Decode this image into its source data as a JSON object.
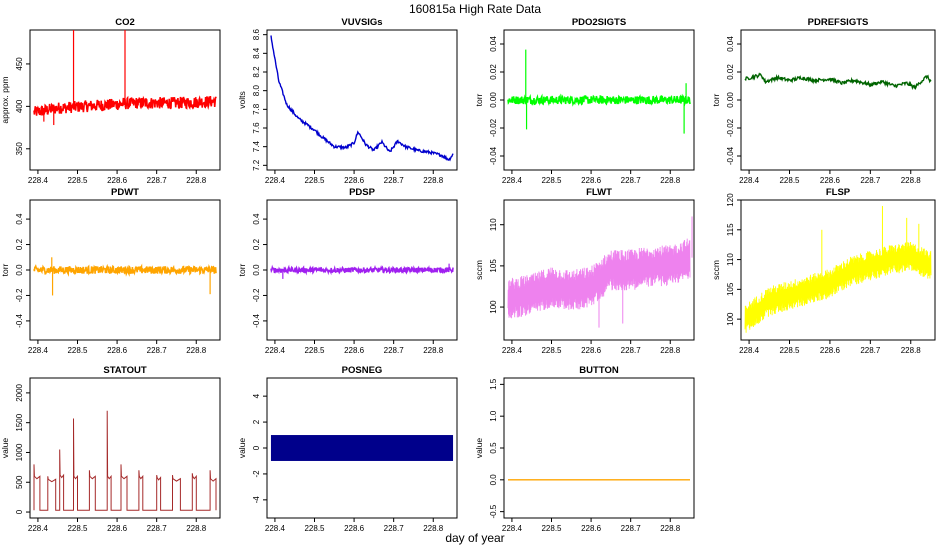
{
  "page": {
    "title": "160815a   High Rate Data",
    "xlabel": "day of year"
  },
  "chart_data": [
    {
      "type": "line",
      "title": "CO2",
      "ylabel": "approx. ppm",
      "color": "#ff0000",
      "xlim": [
        228.38,
        228.86
      ],
      "ylim": [
        325,
        490
      ],
      "xticks": [
        228.4,
        228.5,
        228.6,
        228.7,
        228.8
      ],
      "xtick_labels": [
        "228.4",
        "228.5",
        "228.6",
        "228.7",
        "228.8"
      ],
      "yticks": [
        350,
        400,
        450
      ],
      "ytick_labels": [
        "350",
        "400",
        "450"
      ],
      "series": [
        {
          "name": "CO2",
          "style": "noisy",
          "base": [
            [
              228.39,
              393
            ],
            [
              228.45,
              398
            ],
            [
              228.55,
              401
            ],
            [
              228.65,
              404
            ],
            [
              228.75,
              404
            ],
            [
              228.85,
              406
            ]
          ],
          "noise": 7,
          "spikes": [
            [
              228.49,
              490
            ],
            [
              228.62,
              490
            ],
            [
              228.44,
              378
            ],
            [
              228.415,
              382
            ]
          ]
        }
      ]
    },
    {
      "type": "line",
      "title": "VUVSIGs",
      "ylabel": "volts",
      "color": "#0000cd",
      "xlim": [
        228.38,
        228.86
      ],
      "ylim": [
        7.15,
        8.65
      ],
      "xticks": [
        228.4,
        228.5,
        228.6,
        228.7,
        228.8
      ],
      "xtick_labels": [
        "228.4",
        "228.5",
        "228.6",
        "228.7",
        "228.8"
      ],
      "yticks": [
        7.2,
        7.4,
        7.6,
        7.8,
        8.0,
        8.2,
        8.4,
        8.6
      ],
      "ytick_labels": [
        "7.2",
        "7.4",
        "7.6",
        "7.8",
        "8.0",
        "8.2",
        "8.4",
        "8.6"
      ],
      "series": [
        {
          "name": "VUVSIGs",
          "style": "smooth",
          "points": [
            [
              228.39,
              8.58
            ],
            [
              228.41,
              8.1
            ],
            [
              228.43,
              7.85
            ],
            [
              228.46,
              7.7
            ],
            [
              228.5,
              7.58
            ],
            [
              228.52,
              7.5
            ],
            [
              228.55,
              7.4
            ],
            [
              228.58,
              7.39
            ],
            [
              228.6,
              7.44
            ],
            [
              228.61,
              7.56
            ],
            [
              228.63,
              7.42
            ],
            [
              228.65,
              7.36
            ],
            [
              228.67,
              7.45
            ],
            [
              228.69,
              7.34
            ],
            [
              228.71,
              7.46
            ],
            [
              228.73,
              7.4
            ],
            [
              228.76,
              7.36
            ],
            [
              228.79,
              7.34
            ],
            [
              228.82,
              7.31
            ],
            [
              228.84,
              7.26
            ],
            [
              228.85,
              7.32
            ]
          ],
          "noise": 0.015
        }
      ]
    },
    {
      "type": "line",
      "title": "PDO2SIGTS",
      "ylabel": "torr",
      "color": "#00ff00",
      "xlim": [
        228.38,
        228.86
      ],
      "ylim": [
        -0.05,
        0.05
      ],
      "xticks": [
        228.4,
        228.5,
        228.6,
        228.7,
        228.8
      ],
      "xtick_labels": [
        "228.4",
        "228.5",
        "228.6",
        "228.7",
        "228.8"
      ],
      "yticks": [
        -0.04,
        -0.02,
        0.0,
        0.02,
        0.04
      ],
      "ytick_labels": [
        "-0.04",
        "-0.02",
        "0.00",
        "0.02",
        "0.04"
      ],
      "series": [
        {
          "name": "PDO2SIGTS",
          "style": "noisy",
          "base": [
            [
              228.39,
              0.0
            ],
            [
              228.85,
              0.0
            ]
          ],
          "noise": 0.003,
          "spikes": [
            [
              228.435,
              0.036
            ],
            [
              228.437,
              -0.021
            ],
            [
              228.835,
              -0.024
            ],
            [
              228.84,
              0.012
            ]
          ]
        }
      ]
    },
    {
      "type": "line",
      "title": "PDREFSIGTS",
      "ylabel": "torr",
      "color": "#006400",
      "xlim": [
        228.38,
        228.86
      ],
      "ylim": [
        -0.05,
        0.05
      ],
      "xticks": [
        228.4,
        228.5,
        228.6,
        228.7,
        228.8
      ],
      "xtick_labels": [
        "228.4",
        "228.5",
        "228.6",
        "228.7",
        "228.8"
      ],
      "yticks": [
        -0.04,
        -0.02,
        0.0,
        0.02,
        0.04
      ],
      "ytick_labels": [
        "-0.04",
        "-0.02",
        "0.00",
        "0.02",
        "0.04"
      ],
      "series": [
        {
          "name": "PDREFSIGTS",
          "style": "smooth",
          "points": [
            [
              228.39,
              0.015
            ],
            [
              228.43,
              0.018
            ],
            [
              228.44,
              0.013
            ],
            [
              228.47,
              0.016
            ],
            [
              228.5,
              0.014
            ],
            [
              228.53,
              0.016
            ],
            [
              228.56,
              0.014
            ],
            [
              228.6,
              0.015
            ],
            [
              228.63,
              0.012
            ],
            [
              228.66,
              0.014
            ],
            [
              228.7,
              0.011
            ],
            [
              228.73,
              0.013
            ],
            [
              228.76,
              0.01
            ],
            [
              228.79,
              0.012
            ],
            [
              228.81,
              0.009
            ],
            [
              228.84,
              0.017
            ],
            [
              228.85,
              0.013
            ]
          ],
          "noise": 0.0012
        }
      ]
    },
    {
      "type": "line",
      "title": "PDWT",
      "ylabel": "torr",
      "color": "#ffa500",
      "xlim": [
        228.38,
        228.86
      ],
      "ylim": [
        -0.55,
        0.55
      ],
      "xticks": [
        228.4,
        228.5,
        228.6,
        228.7,
        228.8
      ],
      "xtick_labels": [
        "228.4",
        "228.5",
        "228.6",
        "228.7",
        "228.8"
      ],
      "yticks": [
        -0.4,
        -0.2,
        0.0,
        0.2,
        0.4
      ],
      "ytick_labels": [
        "-0.4",
        "-0.2",
        "0.0",
        "0.2",
        "0.4"
      ],
      "series": [
        {
          "name": "PDWT",
          "style": "noisy",
          "base": [
            [
              228.39,
              0.0
            ],
            [
              228.85,
              0.0
            ]
          ],
          "noise": 0.03,
          "spikes": [
            [
              228.435,
              0.1
            ],
            [
              228.437,
              -0.2
            ],
            [
              228.835,
              -0.19
            ]
          ]
        }
      ]
    },
    {
      "type": "line",
      "title": "PDSP",
      "ylabel": "torr",
      "color": "#a020f0",
      "xlim": [
        228.38,
        228.86
      ],
      "ylim": [
        -0.55,
        0.55
      ],
      "xticks": [
        228.4,
        228.5,
        228.6,
        228.7,
        228.8
      ],
      "xtick_labels": [
        "228.4",
        "228.5",
        "228.6",
        "228.7",
        "228.8"
      ],
      "yticks": [
        -0.4,
        -0.2,
        0.0,
        0.2,
        0.4
      ],
      "ytick_labels": [
        "-0.4",
        "-0.2",
        "0.0",
        "0.2",
        "0.4"
      ],
      "series": [
        {
          "name": "PDSP",
          "style": "noisy",
          "base": [
            [
              228.39,
              0.0
            ],
            [
              228.85,
              0.0
            ]
          ],
          "noise": 0.02,
          "spikes": [
            [
              228.42,
              -0.07
            ],
            [
              228.84,
              0.05
            ]
          ]
        }
      ]
    },
    {
      "type": "line",
      "title": "FLWT",
      "ylabel": "sccm",
      "color": "#ee82ee",
      "xlim": [
        228.38,
        228.86
      ],
      "ylim": [
        96,
        113
      ],
      "xticks": [
        228.4,
        228.5,
        228.6,
        228.7,
        228.8
      ],
      "xtick_labels": [
        "228.4",
        "228.5",
        "228.6",
        "228.7",
        "228.8"
      ],
      "yticks": [
        100,
        105,
        110
      ],
      "ytick_labels": [
        "100",
        "105",
        "110"
      ],
      "series": [
        {
          "name": "FLWT",
          "style": "band",
          "base": [
            [
              228.39,
              101
            ],
            [
              228.45,
              101.5
            ],
            [
              228.5,
              102.5
            ],
            [
              228.55,
              102
            ],
            [
              228.6,
              102.5
            ],
            [
              228.65,
              104.5
            ],
            [
              228.7,
              104.5
            ],
            [
              228.75,
              105
            ],
            [
              228.8,
              105
            ],
            [
              228.85,
              106
            ]
          ],
          "halfwidth": 2.5,
          "spikes": [
            [
              228.855,
              111
            ],
            [
              228.62,
              97.5
            ],
            [
              228.68,
              98
            ]
          ]
        }
      ]
    },
    {
      "type": "line",
      "title": "FLSP",
      "ylabel": "sccm",
      "color": "#ffff00",
      "xlim": [
        228.38,
        228.86
      ],
      "ylim": [
        96.5,
        120
      ],
      "xticks": [
        228.4,
        228.5,
        228.6,
        228.7,
        228.8
      ],
      "xtick_labels": [
        "228.4",
        "228.5",
        "228.6",
        "228.7",
        "228.8"
      ],
      "yticks": [
        100,
        105,
        110,
        115,
        120
      ],
      "ytick_labels": [
        "100",
        "105",
        "110",
        "115",
        "120"
      ],
      "series": [
        {
          "name": "FLSP",
          "style": "band",
          "base": [
            [
              228.39,
              100
            ],
            [
              228.45,
              103
            ],
            [
              228.5,
              104
            ],
            [
              228.55,
              105
            ],
            [
              228.6,
              106
            ],
            [
              228.65,
              108
            ],
            [
              228.7,
              109
            ],
            [
              228.75,
              110
            ],
            [
              228.8,
              110.5
            ],
            [
              228.85,
              109
            ]
          ],
          "halfwidth": 2.5,
          "spikes": [
            [
              228.73,
              119
            ],
            [
              228.58,
              115
            ],
            [
              228.82,
              116
            ],
            [
              228.79,
              117
            ]
          ]
        }
      ]
    },
    {
      "type": "line",
      "title": "STATOUT",
      "ylabel": "value",
      "color": "#a52a2a",
      "xlim": [
        228.38,
        228.86
      ],
      "ylim": [
        -100,
        2250
      ],
      "xticks": [
        228.4,
        228.5,
        228.6,
        228.7,
        228.8
      ],
      "xtick_labels": [
        "228.4",
        "228.5",
        "228.6",
        "228.7",
        "228.8"
      ],
      "yticks": [
        0,
        500,
        1000,
        1500,
        2000
      ],
      "ytick_labels": [
        "0",
        "500",
        "1000",
        "1500",
        "2000"
      ],
      "series": [
        {
          "name": "STATOUT",
          "style": "step",
          "baseline": 30,
          "pulses": [
            [
              228.39,
              228.405,
              600,
              800
            ],
            [
              228.425,
              228.445,
              550,
              600
            ],
            [
              228.455,
              228.465,
              620,
              1050
            ],
            [
              228.49,
              228.5,
              600,
              1570
            ],
            [
              228.53,
              228.545,
              600,
              700
            ],
            [
              228.575,
              228.585,
              600,
              1700
            ],
            [
              228.61,
              228.625,
              600,
              800
            ],
            [
              228.655,
              228.665,
              600,
              700
            ],
            [
              228.7,
              228.71,
              580,
              620
            ],
            [
              228.74,
              228.76,
              560,
              620
            ],
            [
              228.79,
              228.8,
              600,
              650
            ],
            [
              228.835,
              228.85,
              560,
              700
            ]
          ]
        }
      ]
    },
    {
      "type": "bar",
      "title": "POSNEG",
      "ylabel": "value",
      "color": "#00008b",
      "xlim": [
        228.38,
        228.86
      ],
      "ylim": [
        -5.4,
        5.4
      ],
      "xticks": [
        228.4,
        228.5,
        228.6,
        228.7,
        228.8
      ],
      "xtick_labels": [
        "228.4",
        "228.5",
        "228.6",
        "228.7",
        "228.8"
      ],
      "yticks": [
        -4,
        -2,
        0,
        2,
        4
      ],
      "ytick_labels": [
        "-4",
        "-2",
        "0",
        "2",
        "4"
      ],
      "series": [
        {
          "name": "POSNEG",
          "style": "fill",
          "x": [
            228.39,
            228.85
          ],
          "ymin": -1,
          "ymax": 1
        }
      ]
    },
    {
      "type": "line",
      "title": "BUTTON",
      "ylabel": "value",
      "color": "#ffa500",
      "xlim": [
        228.38,
        228.86
      ],
      "ylim": [
        -0.6,
        1.6
      ],
      "xticks": [
        228.4,
        228.5,
        228.6,
        228.7,
        228.8
      ],
      "xtick_labels": [
        "228.4",
        "228.5",
        "228.6",
        "228.7",
        "228.8"
      ],
      "yticks": [
        -0.5,
        0.0,
        0.5,
        1.0,
        1.5
      ],
      "ytick_labels": [
        "-0.5",
        "0.0",
        "0.5",
        "1.0",
        "1.5"
      ],
      "series": [
        {
          "name": "BUTTON",
          "style": "smooth",
          "points": [
            [
              228.39,
              0
            ],
            [
              228.85,
              0
            ]
          ],
          "noise": 0
        }
      ]
    }
  ]
}
